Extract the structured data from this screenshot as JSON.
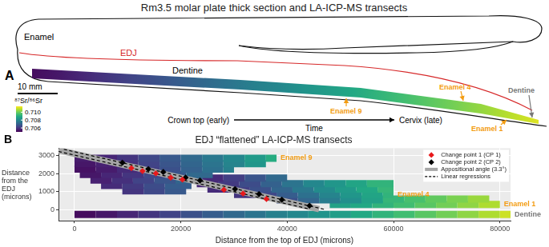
{
  "figure": {
    "panel_a": {
      "label": "A",
      "title": "Rm3.5 molar plate thick section and LA-ICP-MS transects",
      "enamel": "Enamel",
      "edj": "EDJ",
      "dentine": "Dentine",
      "scale_bar": "10 mm",
      "time_start": "Crown top (early)",
      "time": "Time",
      "time_end": "Cervix (late)"
    }
  },
  "chart_data": {
    "type": "scatter",
    "panel_label": "B",
    "title": "EDJ “flattened” LA-ICP-MS transects",
    "x_label": "Distance from the top of EDJ (microns)",
    "y_label": "Distance from the EDJ (microns)",
    "xlim": [
      -3000,
      82000
    ],
    "xticks": [
      0,
      20000,
      40000,
      60000,
      80000
    ],
    "ylim": [
      -600,
      3400
    ],
    "yticks": [
      0,
      1000,
      2000,
      3000
    ],
    "grid": true,
    "legend": "top-right",
    "color_scale": {
      "title": "⁸⁷Sr/⁸⁶Sr",
      "range": [
        0.705,
        0.7115
      ],
      "ticks": [
        0.706,
        0.708,
        {
          "value": 0.71,
          "label": "0.710"
        }
      ]
    },
    "transects": [
      {
        "name": "Enamel 9",
        "color": "#f39c12",
        "rows": [
          {
            "y": 2850,
            "x": [
              0,
              4000,
              8000,
              12000,
              16000,
              20000,
              24000,
              28000,
              32000,
              36000,
              38000
            ],
            "sr": [
              0.7055,
              0.7057,
              0.706,
              0.7064,
              0.7068,
              0.7072,
              0.7076,
              0.708,
              0.7085,
              0.709,
              0.7092
            ]
          },
          {
            "y": 2550,
            "x": [
              0,
              4000,
              8000,
              12000,
              16000,
              20000,
              24000,
              28000,
              32000,
              36000
            ],
            "sr": [
              0.7054,
              0.7056,
              0.7059,
              0.7063,
              0.7067,
              0.7071,
              0.7075,
              0.7079,
              0.7084,
              0.7088
            ]
          },
          {
            "y": 2250,
            "x": [
              0,
              4000,
              8000,
              12000,
              16000,
              20000,
              24000,
              28000,
              30000
            ],
            "sr": [
              0.7053,
              0.7055,
              0.7058,
              0.7062,
              0.7066,
              0.707,
              0.7074,
              0.7078,
              0.708
            ]
          },
          {
            "y": 1950,
            "x": [
              1000,
              5000,
              9000,
              13000,
              17000,
              21000,
              26000
            ],
            "sr": [
              0.7054,
              0.7057,
              0.706,
              0.7064,
              0.7068,
              0.7072,
              0.7076
            ]
          },
          {
            "y": 1650,
            "x": [
              3000,
              7000,
              11000,
              15000,
              19000,
              24000
            ],
            "sr": [
              0.7056,
              0.7059,
              0.7063,
              0.7067,
              0.7071,
              0.7075
            ]
          },
          {
            "y": 1350,
            "x": [
              5000,
              9000,
              13000,
              17000,
              22000
            ],
            "sr": [
              0.7058,
              0.7061,
              0.7065,
              0.7069,
              0.7073
            ]
          },
          {
            "y": 1050,
            "x": [
              9000,
              13000,
              17000,
              21000
            ],
            "sr": [
              0.706,
              0.7064,
              0.7068,
              0.7071
            ]
          }
        ]
      },
      {
        "name": "Enamel 4",
        "color": "#f39c12",
        "rows": [
          {
            "y": 1750,
            "x": [
              24000,
              28000,
              32000,
              36000,
              40000
            ],
            "sr": [
              0.7058,
              0.7062,
              0.7067,
              0.7072,
              0.7076
            ]
          },
          {
            "y": 1450,
            "x": [
              23000,
              27000,
              31000,
              35000,
              39000,
              43000,
              47000,
              51000,
              55000,
              60000
            ],
            "sr": [
              0.7057,
              0.7061,
              0.7065,
              0.707,
              0.7075,
              0.708,
              0.7084,
              0.7088,
              0.7092,
              0.7096
            ]
          },
          {
            "y": 1150,
            "x": [
              25000,
              29000,
              33000,
              37000,
              41000,
              45000,
              49000,
              53000,
              57000,
              60000
            ],
            "sr": [
              0.7058,
              0.7062,
              0.7066,
              0.7071,
              0.7076,
              0.7081,
              0.7085,
              0.7089,
              0.7093,
              0.7096
            ]
          },
          {
            "y": 850,
            "x": [
              30000,
              34000,
              38000,
              42000,
              46000,
              50000,
              54000,
              58000,
              60000
            ],
            "sr": [
              0.706,
              0.7064,
              0.7069,
              0.7074,
              0.7079,
              0.7084,
              0.7088,
              0.7092,
              0.7094
            ]
          },
          {
            "y": 550,
            "x": [
              38000,
              42000,
              46000,
              50000,
              54000,
              58000
            ],
            "sr": [
              0.7066,
              0.7071,
              0.7077,
              0.7082,
              0.7087,
              0.7091
            ]
          }
        ]
      },
      {
        "name": "Enamel 1",
        "color": "#f39c12",
        "rows": [
          {
            "y": 600,
            "x": [
              50000,
              54000,
              58000,
              62000,
              66000,
              70000,
              74000,
              78000
            ],
            "sr": [
              0.7088,
              0.709,
              0.7093,
              0.7096,
              0.7099,
              0.7102,
              0.7105,
              0.7108
            ]
          },
          {
            "y": 300,
            "x": [
              48000,
              52000,
              56000,
              60000,
              64000,
              68000,
              72000,
              76000,
              80000
            ],
            "sr": [
              0.7087,
              0.7089,
              0.7092,
              0.7095,
              0.7098,
              0.7101,
              0.7104,
              0.7107,
              0.711
            ]
          }
        ]
      },
      {
        "name": "Dentine",
        "color": "#777777",
        "rows": [
          {
            "y": -250,
            "x": [
              0,
              4000,
              8000,
              12000,
              16000,
              20000,
              24000,
              28000,
              32000,
              36000,
              40000,
              44000,
              48000,
              52000,
              56000,
              60000,
              64000,
              68000,
              72000,
              76000,
              80000,
              82000
            ],
            "sr": [
              0.7052,
              0.7054,
              0.7057,
              0.706,
              0.7063,
              0.7066,
              0.7069,
              0.7072,
              0.7075,
              0.7078,
              0.708,
              0.7083,
              0.7086,
              0.7089,
              0.7092,
              0.7095,
              0.7098,
              0.7101,
              0.7104,
              0.7107,
              0.711,
              0.7112
            ]
          }
        ]
      }
    ],
    "series": [
      {
        "name": "Change point 1 (CP 1)",
        "type": "scatter",
        "marker": "diamond",
        "color": "#e8191c",
        "x": [
          10700,
          12800,
          15300,
          18100,
          20300,
          28100,
          31700,
          36100
        ],
        "y": [
          2300,
          2140,
          2010,
          1780,
          1670,
          1110,
          900,
          600
        ]
      },
      {
        "name": "Change point 2 (CP 2)",
        "type": "scatter",
        "marker": "diamond",
        "color": "#000000",
        "x": [
          9000,
          13900,
          16700,
          20900,
          23600,
          30200,
          34700,
          39000,
          44200
        ],
        "y": [
          2600,
          2250,
          2090,
          1780,
          1620,
          1150,
          870,
          560,
          230
        ]
      },
      {
        "name": "Appositional angle (3.3°)",
        "type": "line",
        "line_style": "solid",
        "color": "#a6a6a6",
        "lines": [
          {
            "x": [
              -3000,
              46000
            ],
            "y": [
              3290,
              40
            ]
          }
        ]
      },
      {
        "name": "Linear regressions",
        "type": "line",
        "line_style": "dashed",
        "color": "#000000",
        "lines": [
          {
            "x": [
              -3000,
              44000
            ],
            "y": [
              3220,
              60
            ]
          },
          {
            "x": [
              -2000,
              47000
            ],
            "y": [
              3340,
              30
            ]
          }
        ]
      }
    ]
  }
}
